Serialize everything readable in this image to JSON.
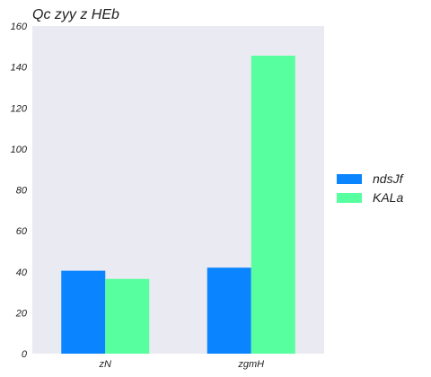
{
  "chart_data": {
    "type": "bar",
    "title": "Qc zyy z  HEb",
    "xlabel": "",
    "ylabel": "",
    "categories": [
      "zN",
      "zgmH"
    ],
    "series": [
      {
        "name": "ndsJf",
        "values": [
          40.5,
          42
        ],
        "color": "#0a84ff"
      },
      {
        "name": "KALa",
        "values": [
          36.5,
          145.5
        ],
        "color": "#57ff9e"
      }
    ],
    "ylim": [
      0,
      160
    ],
    "yticks": [
      0,
      20,
      40,
      60,
      80,
      100,
      120,
      140,
      160
    ],
    "grid": false,
    "legend": "right",
    "plot_background": "#eaeaf2"
  }
}
